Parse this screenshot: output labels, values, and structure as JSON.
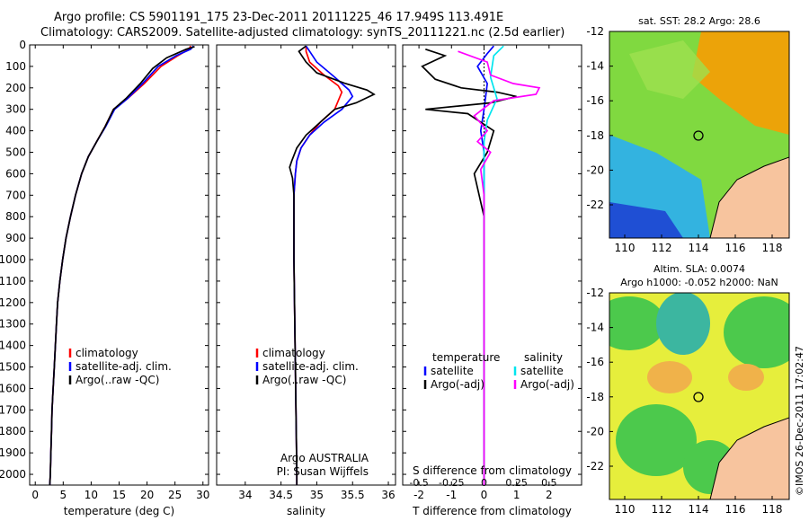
{
  "header": {
    "line1": "Argo profile: CS 5901191_175 23-Dec-2011 20111225_46 17.949S 113.491E",
    "line2": "Climatology: CARS2009. Satellite-adjusted climatology: synTS_20111221.nc (2.5d earlier)"
  },
  "side_credit": "©IMOS 26-Dec-2011 17:02:47",
  "chart_data": [
    {
      "type": "line",
      "xlabel": "temperature (deg C)",
      "ylabel": "",
      "xlim": [
        -1,
        31
      ],
      "ylim": [
        2050,
        0
      ],
      "xticks": [
        0,
        5,
        10,
        15,
        20,
        25,
        30
      ],
      "yticks": [
        0,
        100,
        200,
        300,
        400,
        500,
        600,
        700,
        800,
        900,
        1000,
        1100,
        1200,
        1300,
        1400,
        1500,
        1600,
        1700,
        1800,
        1900,
        2000
      ],
      "legend": [
        "climatology",
        "satellite-adj. clim.",
        "Argo(..raw -QC)"
      ],
      "series": [
        {
          "name": "climatology",
          "color": "#ff0000",
          "points": [
            [
              27.8,
              5
            ],
            [
              27.5,
              20
            ],
            [
              25.5,
              50
            ],
            [
              22.5,
              100
            ],
            [
              19.5,
              180
            ],
            [
              16.5,
              250
            ],
            [
              14,
              300
            ],
            [
              12.5,
              380
            ],
            [
              11,
              450
            ],
            [
              9.5,
              520
            ],
            [
              8.3,
              600
            ],
            [
              7.2,
              700
            ],
            [
              6.3,
              800
            ],
            [
              5.5,
              900
            ],
            [
              4.9,
              1000
            ],
            [
              4.4,
              1100
            ],
            [
              4,
              1200
            ],
            [
              3.8,
              1300
            ],
            [
              3.6,
              1400
            ],
            [
              3.4,
              1500
            ],
            [
              3.2,
              1600
            ],
            [
              3,
              1700
            ],
            [
              2.9,
              1800
            ],
            [
              2.8,
              1900
            ],
            [
              2.7,
              2000
            ],
            [
              2.6,
              2050
            ]
          ]
        },
        {
          "name": "satellite-adj. clim.",
          "color": "#0000ff",
          "points": [
            [
              28.3,
              5
            ],
            [
              27.8,
              20
            ],
            [
              25.2,
              50
            ],
            [
              22,
              100
            ],
            [
              19.2,
              180
            ],
            [
              16.5,
              250
            ],
            [
              14.2,
              300
            ],
            [
              12.6,
              380
            ],
            [
              11,
              450
            ],
            [
              9.5,
              520
            ],
            [
              8.3,
              600
            ],
            [
              7.2,
              700
            ],
            [
              6.3,
              800
            ],
            [
              5.5,
              900
            ],
            [
              4.9,
              1000
            ],
            [
              4.4,
              1100
            ],
            [
              4,
              1200
            ],
            [
              3.8,
              1300
            ],
            [
              3.6,
              1400
            ],
            [
              3.4,
              1500
            ],
            [
              3.2,
              1600
            ],
            [
              3,
              1700
            ],
            [
              2.9,
              1800
            ],
            [
              2.8,
              1900
            ],
            [
              2.7,
              2000
            ],
            [
              2.6,
              2050
            ]
          ]
        },
        {
          "name": "Argo(..raw -QC)",
          "color": "#000000",
          "points": [
            [
              28.5,
              8
            ],
            [
              27,
              20
            ],
            [
              23.5,
              60
            ],
            [
              21,
              110
            ],
            [
              18.8,
              180
            ],
            [
              16.2,
              250
            ],
            [
              14,
              300
            ],
            [
              12.5,
              380
            ],
            [
              11,
              450
            ],
            [
              9.5,
              520
            ],
            [
              8.3,
              600
            ],
            [
              7.2,
              700
            ],
            [
              6.3,
              800
            ],
            [
              5.5,
              900
            ],
            [
              4.9,
              1000
            ],
            [
              4.4,
              1100
            ],
            [
              4,
              1200
            ],
            [
              3.8,
              1300
            ],
            [
              3.6,
              1400
            ],
            [
              3.4,
              1500
            ],
            [
              3.2,
              1600
            ],
            [
              3,
              1700
            ],
            [
              2.9,
              1800
            ],
            [
              2.8,
              1900
            ],
            [
              2.7,
              2000
            ],
            [
              2.6,
              2050
            ]
          ]
        }
      ]
    },
    {
      "type": "line",
      "xlabel": "salinity",
      "xlim": [
        33.6,
        36.1
      ],
      "ylim": [
        2050,
        0
      ],
      "xticks": [
        34,
        34.5,
        35,
        35.5,
        36
      ],
      "legend": [
        "climatology",
        "satellite-adj. clim.",
        "Argo(..raw -QC)"
      ],
      "notes": [
        "Argo AUSTRALIA",
        "PI: Susan Wijffels"
      ],
      "series": [
        {
          "name": "climatology",
          "color": "#ff0000",
          "points": [
            [
              34.85,
              5
            ],
            [
              34.85,
              30
            ],
            [
              34.9,
              80
            ],
            [
              35.1,
              140
            ],
            [
              35.3,
              190
            ],
            [
              35.35,
              220
            ],
            [
              35.25,
              300
            ],
            [
              35.05,
              360
            ],
            [
              34.9,
              420
            ],
            [
              34.78,
              480
            ],
            [
              34.72,
              540
            ],
            [
              34.7,
              600
            ],
            [
              34.68,
              700
            ],
            [
              34.68,
              1000
            ],
            [
              34.7,
              1500
            ],
            [
              34.72,
              2000
            ],
            [
              34.72,
              2050
            ]
          ]
        },
        {
          "name": "satellite-adj. clim.",
          "color": "#0000ff",
          "points": [
            [
              34.85,
              5
            ],
            [
              34.9,
              30
            ],
            [
              35.0,
              80
            ],
            [
              35.25,
              150
            ],
            [
              35.45,
              210
            ],
            [
              35.5,
              240
            ],
            [
              35.35,
              300
            ],
            [
              35.1,
              360
            ],
            [
              34.9,
              420
            ],
            [
              34.78,
              480
            ],
            [
              34.72,
              540
            ],
            [
              34.7,
              600
            ],
            [
              34.68,
              700
            ],
            [
              34.68,
              1000
            ],
            [
              34.7,
              1500
            ],
            [
              34.72,
              2000
            ],
            [
              34.72,
              2050
            ]
          ]
        },
        {
          "name": "Argo(..raw -QC)",
          "color": "#000000",
          "points": [
            [
              34.85,
              5
            ],
            [
              34.75,
              30
            ],
            [
              34.85,
              80
            ],
            [
              35.0,
              130
            ],
            [
              35.4,
              180
            ],
            [
              35.7,
              210
            ],
            [
              35.8,
              230
            ],
            [
              35.55,
              270
            ],
            [
              35.25,
              300
            ],
            [
              35.05,
              360
            ],
            [
              34.85,
              420
            ],
            [
              34.72,
              480
            ],
            [
              34.65,
              540
            ],
            [
              34.62,
              570
            ],
            [
              34.66,
              620
            ],
            [
              34.68,
              700
            ],
            [
              34.68,
              1000
            ],
            [
              34.7,
              1500
            ],
            [
              34.72,
              2000
            ],
            [
              34.72,
              2050
            ]
          ]
        }
      ]
    },
    {
      "type": "line",
      "xlabel": "T difference from climatology",
      "xlabel_top": "S difference from climatology",
      "xlim": [
        -2.5,
        3.0
      ],
      "ylim": [
        2050,
        0
      ],
      "xticks": [
        -2,
        -1,
        0,
        1,
        2
      ],
      "xticks_top": [
        -0.5,
        -0.25,
        0,
        0.25,
        0.5
      ],
      "legend_headers": [
        "temperature",
        "salinity"
      ],
      "legend": [
        "satellite",
        "Argo(-adj)",
        "satellite",
        "Argo(-adj)"
      ],
      "series": [
        {
          "name": "satellite",
          "color": "#0000ff",
          "points": [
            [
              0.3,
              5
            ],
            [
              0.1,
              40
            ],
            [
              -0.2,
              100
            ],
            [
              0.1,
              180
            ],
            [
              0,
              300
            ],
            [
              -0.1,
              400
            ],
            [
              0,
              500
            ],
            [
              0,
              800
            ],
            [
              0,
              2050
            ]
          ]
        },
        {
          "name": "Argo(-adj)",
          "color": "#000000",
          "points": [
            [
              -1.8,
              20
            ],
            [
              -1.2,
              50
            ],
            [
              -1.9,
              100
            ],
            [
              -1.5,
              160
            ],
            [
              -0.7,
              200
            ],
            [
              0.4,
              220
            ],
            [
              1.0,
              240
            ],
            [
              0.2,
              270
            ],
            [
              -1.8,
              300
            ],
            [
              -0.5,
              320
            ],
            [
              0.3,
              400
            ],
            [
              0.1,
              500
            ],
            [
              -0.3,
              600
            ],
            [
              0,
              800
            ],
            [
              0,
              1700
            ],
            [
              0,
              2050
            ]
          ]
        },
        {
          "name": "satellite",
          "color": "#00e5ee",
          "points": [
            [
              0.6,
              5
            ],
            [
              0.3,
              50
            ],
            [
              0.2,
              150
            ],
            [
              0.4,
              250
            ],
            [
              0.1,
              350
            ],
            [
              0,
              450
            ],
            [
              0,
              1000
            ],
            [
              0,
              2050
            ]
          ]
        },
        {
          "name": "Argo(-adj)",
          "color": "#ff00ff",
          "points": [
            [
              -0.8,
              30
            ],
            [
              0.1,
              80
            ],
            [
              0.2,
              140
            ],
            [
              0.9,
              180
            ],
            [
              1.7,
              200
            ],
            [
              1.6,
              230
            ],
            [
              0.3,
              260
            ],
            [
              -0.3,
              330
            ],
            [
              0.1,
              400
            ],
            [
              -0.2,
              450
            ],
            [
              0.2,
              500
            ],
            [
              -0.1,
              580
            ],
            [
              0,
              700
            ],
            [
              0,
              1500
            ],
            [
              0,
              2050
            ]
          ]
        }
      ]
    }
  ],
  "map1": {
    "title": "sat. SST: 28.2 Argo: 28.6",
    "xticks": [
      "110",
      "112",
      "114",
      "116",
      "118"
    ],
    "yticks": [
      "-12",
      "-14",
      "-16",
      "-18",
      "-20",
      "-22"
    ],
    "colors": {
      "warm": "#ff9900",
      "mid": "#80d940",
      "cool": "#33b3e0",
      "cold": "#1f4fd4",
      "land": "#f7c49e"
    }
  },
  "map2": {
    "title1": "Altim. SLA: 0.0074",
    "title2": "Argo h1000: -0.052 h2000: NaN",
    "xticks": [
      "110",
      "112",
      "114",
      "116",
      "118"
    ],
    "yticks": [
      "-12",
      "-14",
      "-16",
      "-18",
      "-20",
      "-22"
    ],
    "colors": {
      "yellow": "#e6ee3c",
      "green": "#4cc94c",
      "orange": "#f0b24a",
      "teal": "#3cb6a0",
      "land": "#f7c49e"
    }
  }
}
